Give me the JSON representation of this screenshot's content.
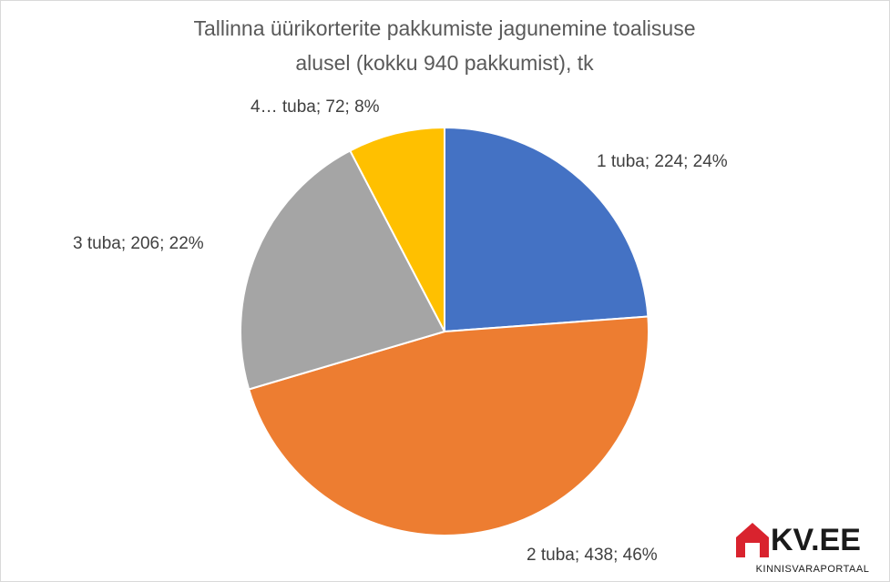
{
  "chart_data": {
    "type": "pie",
    "title": [
      "Tallinna üürikorterite pakkumiste jagunemine toalisuse",
      "alusel (kokku 940 pakkumist), tk"
    ],
    "values": [
      224,
      438,
      206,
      72
    ],
    "value_labels": [
      "1 tuba; 224; 24%",
      "2 tuba; 438; 46%",
      "3 tuba; 206; 22%",
      "4… tuba; 72; 8%"
    ],
    "colors": [
      "#4472c4",
      "#ed7d31",
      "#a5a5a5",
      "#ffc000"
    ]
  },
  "logo": {
    "name": "KV.EE",
    "tagline": "KINNISVARAPORTAAL"
  }
}
